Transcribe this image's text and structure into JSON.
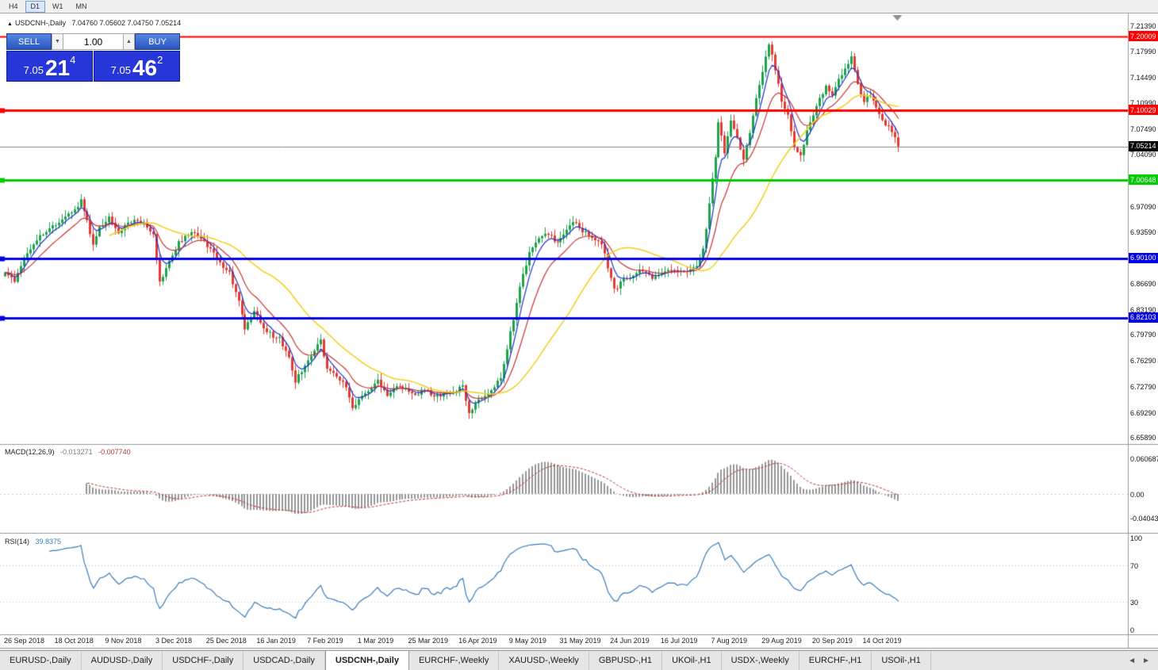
{
  "window": {
    "toolbar": {
      "timeframes": [
        {
          "label": "H4",
          "active": false
        },
        {
          "label": "D1",
          "active": true
        },
        {
          "label": "W1",
          "active": false
        },
        {
          "label": "MN",
          "active": false
        }
      ]
    },
    "tabs": {
      "items": [
        {
          "label": "EURUSD-,Daily",
          "active": false
        },
        {
          "label": "AUDUSD-,Daily",
          "active": false
        },
        {
          "label": "USDCHF-,Daily",
          "active": false
        },
        {
          "label": "USDCAD-,Daily",
          "active": false
        },
        {
          "label": "USDCNH-,Daily",
          "active": true
        },
        {
          "label": "EURCHF-,Weekly",
          "active": false
        },
        {
          "label": "XAUUSD-,Weekly",
          "active": false
        },
        {
          "label": "GBPUSD-,H1",
          "active": false
        },
        {
          "label": "UKOil-,H1",
          "active": false
        },
        {
          "label": "USDX-,Weekly",
          "active": false
        },
        {
          "label": "EURCHF-,H1",
          "active": false
        },
        {
          "label": "USOil-,H1",
          "active": false
        }
      ],
      "scroll_left": "◄",
      "scroll_right": "►"
    }
  },
  "header": {
    "symbol_title": "USDCNH-,Daily",
    "ohlc": "7.04760 7.05602 7.04750 7.05214"
  },
  "trade_panel": {
    "sell_label": "SELL",
    "buy_label": "BUY",
    "volume": "1.00",
    "bid": {
      "prefix": "7.05",
      "big": "21",
      "sup": "4"
    },
    "ask": {
      "prefix": "7.05",
      "big": "46",
      "sup": "2"
    }
  },
  "indicators": {
    "macd": {
      "label": "MACD(12,26,9)",
      "value_main": "-0.013271",
      "value_signal": "-0.007740",
      "axis": [
        0.060687,
        0,
        -0.040432
      ],
      "axis_text": [
        "0.060687",
        "0.00",
        "-0.040432"
      ]
    },
    "rsi": {
      "label": "RSI(14)",
      "value": "39.8375",
      "axis": [
        100,
        70,
        30,
        0
      ]
    }
  },
  "chart_data": {
    "type": "candlestick",
    "symbol": "USDCNH",
    "timeframe": "Daily",
    "ohlc_last": {
      "open": 7.0476,
      "high": 7.05602,
      "low": 7.0475,
      "close": 7.05214
    },
    "current_price": 7.05214,
    "y_range": {
      "top": 7.228,
      "bottom": 6.654
    },
    "price_axis_ticks": [
      7.2139,
      7.1799,
      7.1449,
      7.1099,
      7.0749,
      7.0409,
      6.9709,
      6.9359,
      6.8669,
      6.8319,
      6.7979,
      6.7629,
      6.7279,
      6.6929,
      6.6589
    ],
    "levels": [
      {
        "price": 7.20009,
        "color": "#FF0000",
        "width": 2,
        "label": "7.20009",
        "marker": false
      },
      {
        "price": 7.10029,
        "color": "#FF0000",
        "width": 3,
        "label": "7.10029",
        "marker": true
      },
      {
        "price": 7.00648,
        "color": "#00CC00",
        "width": 3,
        "label": "7.00648",
        "marker": true
      },
      {
        "price": 6.901,
        "color": "#0000E6",
        "width": 3,
        "label": "6.90100",
        "marker": true
      },
      {
        "price": 6.82103,
        "color": "#0000E6",
        "width": 3,
        "label": "6.82103",
        "marker": true
      }
    ],
    "bid_badge": {
      "price": 7.05214,
      "label": "7.05214",
      "color": "#000000"
    },
    "dates": [
      "26 Sep 2018",
      "18 Oct 2018",
      "9 Nov 2018",
      "3 Dec 2018",
      "25 Dec 2018",
      "16 Jan 2019",
      "7 Feb 2019",
      "1 Mar 2019",
      "25 Mar 2019",
      "16 Apr 2019",
      "9 May 2019",
      "31 May 2019",
      "24 Jun 2019",
      "16 Jul 2019",
      "7 Aug 2019",
      "29 Aug 2019",
      "20 Sep 2019",
      "14 Oct 2019"
    ],
    "candles_per_label": 16,
    "num_candles": 284,
    "candle_colors": {
      "up": "#1fa24e",
      "down": "#e23b30"
    },
    "moving_averages": [
      {
        "period": 5,
        "type": "ema",
        "color": "#2233cc",
        "width": 1.2
      },
      {
        "period": 13,
        "type": "ema",
        "color": "#cc3333",
        "width": 1.2
      },
      {
        "period": 34,
        "type": "sma",
        "color": "#f2cf1d",
        "width": 1.5
      }
    ],
    "price_anchors": [
      [
        0,
        6.885
      ],
      [
        3,
        6.868
      ],
      [
        6,
        6.902
      ],
      [
        10,
        6.928
      ],
      [
        14,
        6.94
      ],
      [
        18,
        6.952
      ],
      [
        22,
        6.968
      ],
      [
        24,
        6.978
      ],
      [
        26,
        6.952
      ],
      [
        28,
        6.92
      ],
      [
        30,
        6.942
      ],
      [
        33,
        6.956
      ],
      [
        36,
        6.938
      ],
      [
        40,
        6.952
      ],
      [
        44,
        6.948
      ],
      [
        47,
        6.932
      ],
      [
        49,
        6.868
      ],
      [
        52,
        6.898
      ],
      [
        55,
        6.922
      ],
      [
        59,
        6.936
      ],
      [
        63,
        6.924
      ],
      [
        67,
        6.9
      ],
      [
        71,
        6.882
      ],
      [
        74,
        6.842
      ],
      [
        76,
        6.806
      ],
      [
        79,
        6.828
      ],
      [
        83,
        6.802
      ],
      [
        87,
        6.792
      ],
      [
        90,
        6.768
      ],
      [
        92,
        6.735
      ],
      [
        95,
        6.758
      ],
      [
        98,
        6.778
      ],
      [
        100,
        6.79
      ],
      [
        102,
        6.752
      ],
      [
        105,
        6.742
      ],
      [
        108,
        6.728
      ],
      [
        110,
        6.698
      ],
      [
        112,
        6.712
      ],
      [
        115,
        6.722
      ],
      [
        118,
        6.736
      ],
      [
        121,
        6.718
      ],
      [
        124,
        6.73
      ],
      [
        127,
        6.726
      ],
      [
        130,
        6.716
      ],
      [
        133,
        6.725
      ],
      [
        136,
        6.713
      ],
      [
        139,
        6.72
      ],
      [
        142,
        6.722
      ],
      [
        145,
        6.728
      ],
      [
        147,
        6.692
      ],
      [
        149,
        6.703
      ],
      [
        152,
        6.718
      ],
      [
        155,
        6.728
      ],
      [
        157,
        6.742
      ],
      [
        160,
        6.8
      ],
      [
        163,
        6.862
      ],
      [
        166,
        6.91
      ],
      [
        169,
        6.926
      ],
      [
        172,
        6.935
      ],
      [
        175,
        6.922
      ],
      [
        178,
        6.938
      ],
      [
        180,
        6.952
      ],
      [
        183,
        6.938
      ],
      [
        186,
        6.928
      ],
      [
        189,
        6.92
      ],
      [
        191,
        6.89
      ],
      [
        193,
        6.858
      ],
      [
        196,
        6.872
      ],
      [
        199,
        6.88
      ],
      [
        202,
        6.884
      ],
      [
        205,
        6.876
      ],
      [
        208,
        6.88
      ],
      [
        211,
        6.886
      ],
      [
        214,
        6.882
      ],
      [
        217,
        6.884
      ],
      [
        219,
        6.89
      ],
      [
        221,
        6.912
      ],
      [
        223,
        6.975
      ],
      [
        225,
        7.04
      ],
      [
        226,
        7.085
      ],
      [
        228,
        7.045
      ],
      [
        230,
        7.088
      ],
      [
        232,
        7.062
      ],
      [
        234,
        7.035
      ],
      [
        236,
        7.068
      ],
      [
        238,
        7.12
      ],
      [
        240,
        7.155
      ],
      [
        242,
        7.192
      ],
      [
        244,
        7.155
      ],
      [
        246,
        7.115
      ],
      [
        248,
        7.092
      ],
      [
        250,
        7.052
      ],
      [
        252,
        7.038
      ],
      [
        254,
        7.072
      ],
      [
        256,
        7.095
      ],
      [
        258,
        7.118
      ],
      [
        260,
        7.132
      ],
      [
        262,
        7.12
      ],
      [
        264,
        7.142
      ],
      [
        266,
        7.158
      ],
      [
        268,
        7.172
      ],
      [
        270,
        7.138
      ],
      [
        272,
        7.112
      ],
      [
        274,
        7.122
      ],
      [
        276,
        7.102
      ],
      [
        278,
        7.088
      ],
      [
        280,
        7.078
      ],
      [
        282,
        7.062
      ],
      [
        283,
        7.0521
      ]
    ]
  }
}
